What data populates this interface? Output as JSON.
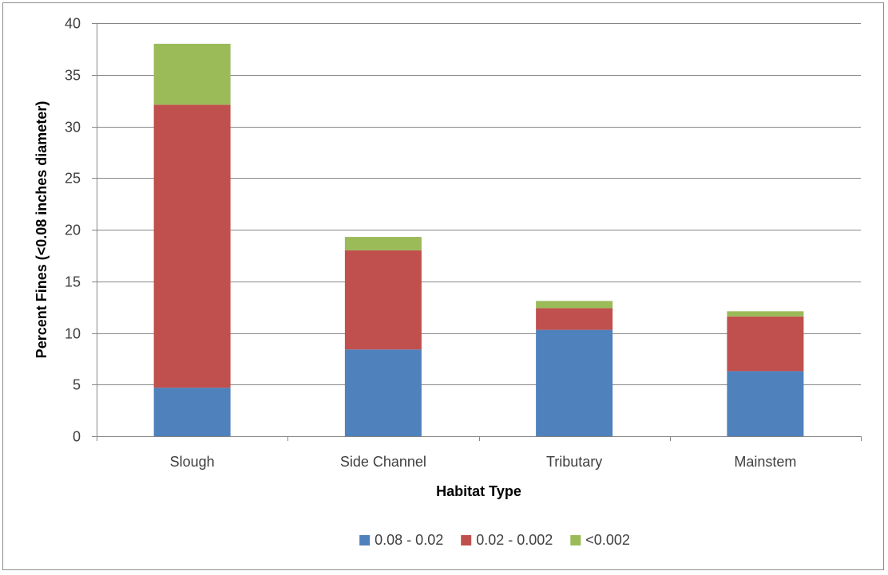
{
  "chart_data": {
    "type": "bar",
    "stacked": true,
    "categories": [
      "Slough",
      "Side Channel",
      "Tributary",
      "Mainstem"
    ],
    "series": [
      {
        "name": "0.08 - 0.02",
        "color": "#4f81bd",
        "values": [
          4.7,
          8.4,
          10.3,
          6.3
        ]
      },
      {
        "name": "0.02 - 0.002",
        "color": "#c0504d",
        "values": [
          27.4,
          9.6,
          2.1,
          5.3
        ]
      },
      {
        "name": "<0.002",
        "color": "#9bbb59",
        "values": [
          5.9,
          1.3,
          0.7,
          0.5
        ]
      }
    ],
    "xlabel": "Habitat Type",
    "ylabel": "Percent Fines (<0.08 inches diameter)",
    "ylim": [
      0,
      40
    ],
    "yticks": [
      0,
      5,
      10,
      15,
      20,
      25,
      30,
      35,
      40
    ],
    "grid": true,
    "legend_position": "bottom"
  }
}
